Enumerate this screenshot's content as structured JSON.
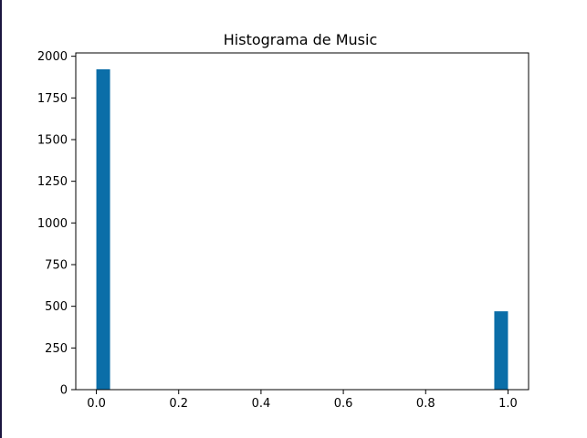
{
  "chart_data": {
    "type": "bar",
    "title": "Histograma de Music",
    "xlabel": "",
    "ylabel": "",
    "xlim": [
      -0.05,
      1.05
    ],
    "ylim": [
      0,
      2020
    ],
    "x_ticks": [
      0.0,
      0.2,
      0.4,
      0.6,
      0.8,
      1.0
    ],
    "x_tick_labels": [
      "0.0",
      "0.2",
      "0.4",
      "0.6",
      "0.8",
      "1.0"
    ],
    "y_ticks": [
      0,
      250,
      500,
      750,
      1000,
      1250,
      1500,
      1750,
      2000
    ],
    "y_tick_labels": [
      "0",
      "250",
      "500",
      "750",
      "1000",
      "1250",
      "1500",
      "1750",
      "2000"
    ],
    "bins": [
      {
        "x0": 0.0,
        "x1": 0.0333,
        "value": 1922
      },
      {
        "x0": 0.9667,
        "x1": 1.0,
        "value": 470
      }
    ],
    "grid": false,
    "legend": "none",
    "colors": {
      "bar": "#0b6ea8"
    }
  }
}
